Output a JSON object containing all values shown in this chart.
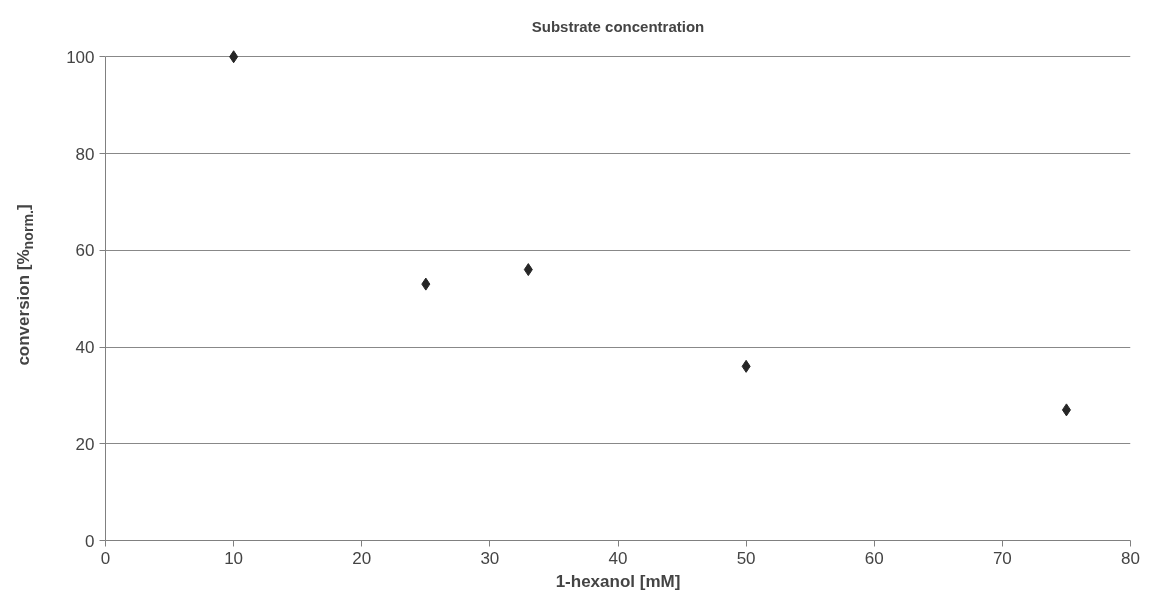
{
  "chart_data": {
    "type": "scatter",
    "title": "Substrate concentration",
    "xlabel": "1-hexanol [mM]",
    "ylabel": "conversion [%$_{norm.}$]",
    "x": [
      10,
      25,
      33,
      50,
      75
    ],
    "series": [
      {
        "color": "#262626",
        "values": [
          100,
          53,
          56,
          36,
          27
        ]
      }
    ],
    "xlim": [
      0,
      80
    ],
    "xticks": [
      0,
      10,
      20,
      30,
      40,
      50,
      60,
      70,
      80
    ],
    "ylim": [
      0,
      100
    ],
    "yticks": [
      0,
      20,
      40,
      60,
      80,
      100
    ],
    "grid": "y",
    "marker": "diamond"
  }
}
